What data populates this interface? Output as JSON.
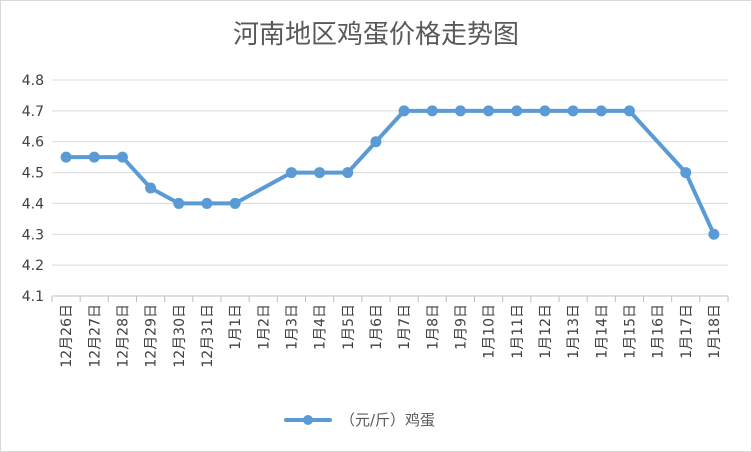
{
  "chart_data": {
    "type": "line",
    "title": "河南地区鸡蛋价格走势图",
    "categories": [
      "12月26日",
      "12月27日",
      "12月28日",
      "12月29日",
      "12月30日",
      "12月31日",
      "1月1日",
      "1月2日",
      "1月3日",
      "1月4日",
      "1月5日",
      "1月6日",
      "1月7日",
      "1月8日",
      "1月9日",
      "1月10日",
      "1月11日",
      "1月12日",
      "1月13日",
      "1月14日",
      "1月15日",
      "1月16日",
      "1月17日",
      "1月18日"
    ],
    "series": [
      {
        "name": "（元/斤）鸡蛋",
        "color": "#5b9bd5",
        "values": [
          4.55,
          4.55,
          4.55,
          4.45,
          4.4,
          4.4,
          4.4,
          null,
          4.5,
          4.5,
          4.5,
          4.6,
          4.7,
          4.7,
          4.7,
          4.7,
          4.7,
          4.7,
          4.7,
          4.7,
          4.7,
          null,
          4.5,
          4.3
        ]
      }
    ],
    "ylim": [
      4.1,
      4.8
    ],
    "yticks": [
      "4.1",
      "4.2",
      "4.3",
      "4.4",
      "4.5",
      "4.6",
      "4.7",
      "4.8"
    ],
    "grid": true,
    "legend": "bottom"
  }
}
